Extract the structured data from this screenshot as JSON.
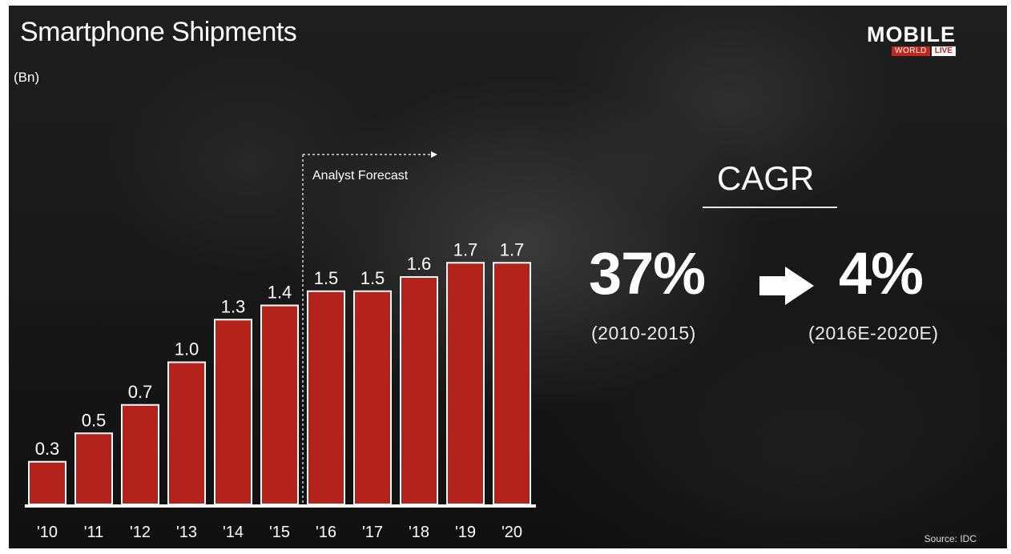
{
  "slide": {
    "title": "Smartphone Shipments",
    "unit": "(Bn)",
    "logo": {
      "top": "MOBILE",
      "world": "WORLD",
      "live": "LIVE"
    },
    "cagr": {
      "heading": "CAGR",
      "before_value": "37%",
      "before_period": "(2010-2015)",
      "after_value": "4%",
      "after_period": "(2016E-2020E)",
      "arrow_icon": "right-arrow-icon"
    },
    "source": "Source:  IDC"
  },
  "colors": {
    "bar_fill": "#b3231b",
    "bar_stroke": "#ffffff",
    "background": "#181818",
    "text": "#ffffff",
    "logo_red": "#c1271d"
  },
  "chart_data": {
    "type": "bar",
    "title": "Smartphone Shipments",
    "ylabel": "(Bn)",
    "categories": [
      "'10",
      "'11",
      "'12",
      "'13",
      "'14",
      "'15",
      "'16",
      "'17",
      "'18",
      "'19",
      "'20"
    ],
    "values": [
      0.3,
      0.5,
      0.7,
      1.0,
      1.3,
      1.4,
      1.5,
      1.5,
      1.6,
      1.7,
      1.7
    ],
    "data_labels": [
      "0.3",
      "0.5",
      "0.7",
      "1.0",
      "1.3",
      "1.4",
      "1.5",
      "1.5",
      "1.6",
      "1.7",
      "1.7"
    ],
    "ylim": [
      0,
      1.9
    ],
    "grid": false,
    "annotation": {
      "text": "Analyst Forecast",
      "starts_at": "'16"
    }
  }
}
